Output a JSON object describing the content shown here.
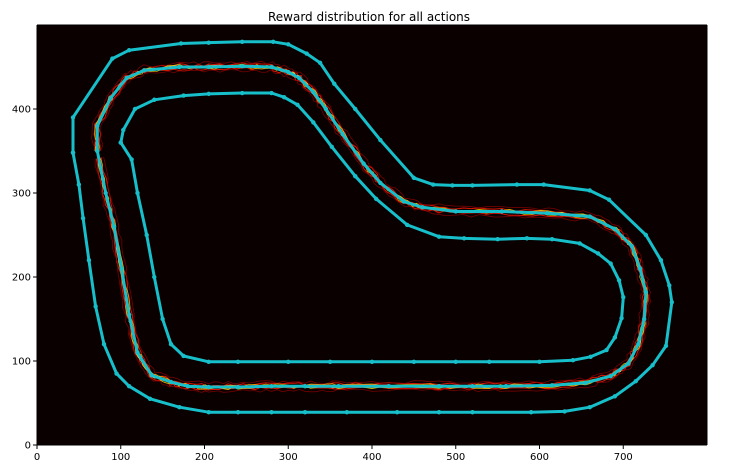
{
  "chart_data": {
    "type": "line",
    "title": "Reward distribution for all actions",
    "xlabel": "",
    "ylabel": "",
    "xlim": [
      0,
      800
    ],
    "ylim": [
      0,
      500
    ],
    "x_ticks": [
      0,
      100,
      200,
      300,
      400,
      500,
      600,
      700
    ],
    "y_ticks": [
      0,
      100,
      200,
      300,
      400
    ],
    "grid": false,
    "background_color": "#0a0000",
    "track_color": "#17bfca",
    "heat_colors": [
      "#8b0000",
      "#ff1a00",
      "#ffd700",
      "#ffffa0"
    ],
    "series": [
      {
        "role": "outer-border",
        "points": [
          [
            43,
            348
          ],
          [
            43,
            390
          ],
          [
            90,
            460
          ],
          [
            110,
            470
          ],
          [
            172,
            478
          ],
          [
            205,
            479
          ],
          [
            245,
            480
          ],
          [
            282,
            480
          ],
          [
            300,
            477
          ],
          [
            322,
            466
          ],
          [
            338,
            455
          ],
          [
            355,
            430
          ],
          [
            380,
            400
          ],
          [
            410,
            363
          ],
          [
            450,
            318
          ],
          [
            473,
            310
          ],
          [
            496,
            309
          ],
          [
            520,
            309
          ],
          [
            573,
            310
          ],
          [
            605,
            310
          ],
          [
            660,
            303
          ],
          [
            683,
            292
          ],
          [
            727,
            250
          ],
          [
            745,
            220
          ],
          [
            755,
            190
          ],
          [
            758,
            170
          ],
          [
            751,
            118
          ],
          [
            735,
            95
          ],
          [
            715,
            76
          ],
          [
            690,
            58
          ],
          [
            660,
            45
          ],
          [
            630,
            40
          ],
          [
            590,
            39
          ],
          [
            520,
            39
          ],
          [
            480,
            39
          ],
          [
            430,
            39
          ],
          [
            370,
            39
          ],
          [
            320,
            39
          ],
          [
            280,
            39
          ],
          [
            240,
            39
          ],
          [
            205,
            39
          ],
          [
            170,
            45
          ],
          [
            135,
            55
          ],
          [
            110,
            70
          ],
          [
            95,
            85
          ],
          [
            80,
            120
          ],
          [
            70,
            165
          ],
          [
            62,
            220
          ],
          [
            55,
            270
          ],
          [
            50,
            310
          ],
          [
            43,
            348
          ]
        ]
      },
      {
        "role": "centerline",
        "points": [
          [
            72,
            350
          ],
          [
            72,
            380
          ],
          [
            88,
            413
          ],
          [
            107,
            437
          ],
          [
            128,
            446
          ],
          [
            170,
            450
          ],
          [
            205,
            450
          ],
          [
            245,
            451
          ],
          [
            280,
            450
          ],
          [
            300,
            444
          ],
          [
            313,
            437
          ],
          [
            330,
            420
          ],
          [
            345,
            400
          ],
          [
            365,
            370
          ],
          [
            390,
            335
          ],
          [
            410,
            312
          ],
          [
            438,
            290
          ],
          [
            460,
            283
          ],
          [
            500,
            278
          ],
          [
            555,
            278
          ],
          [
            610,
            276
          ],
          [
            660,
            272
          ],
          [
            690,
            257
          ],
          [
            710,
            237
          ],
          [
            720,
            210
          ],
          [
            727,
            182
          ],
          [
            725,
            150
          ],
          [
            718,
            120
          ],
          [
            706,
            97
          ],
          [
            685,
            82
          ],
          [
            655,
            74
          ],
          [
            615,
            71
          ],
          [
            560,
            70
          ],
          [
            520,
            70
          ],
          [
            480,
            70
          ],
          [
            420,
            70
          ],
          [
            360,
            70
          ],
          [
            320,
            70
          ],
          [
            280,
            70
          ],
          [
            240,
            69
          ],
          [
            205,
            69
          ],
          [
            180,
            70
          ],
          [
            160,
            75
          ],
          [
            137,
            83
          ],
          [
            120,
            110
          ],
          [
            110,
            155
          ],
          [
            101,
            210
          ],
          [
            92,
            260
          ],
          [
            82,
            300
          ],
          [
            72,
            350
          ]
        ]
      },
      {
        "role": "inner-border",
        "points": [
          [
            100,
            360
          ],
          [
            103,
            375
          ],
          [
            117,
            400
          ],
          [
            140,
            411
          ],
          [
            175,
            416
          ],
          [
            205,
            418
          ],
          [
            245,
            419
          ],
          [
            280,
            419
          ],
          [
            295,
            414
          ],
          [
            311,
            405
          ],
          [
            330,
            384
          ],
          [
            352,
            355
          ],
          [
            380,
            320
          ],
          [
            405,
            293
          ],
          [
            442,
            262
          ],
          [
            480,
            248
          ],
          [
            510,
            246
          ],
          [
            550,
            245
          ],
          [
            585,
            246
          ],
          [
            615,
            245
          ],
          [
            648,
            240
          ],
          [
            670,
            228
          ],
          [
            685,
            216
          ],
          [
            695,
            196
          ],
          [
            700,
            176
          ],
          [
            698,
            151
          ],
          [
            690,
            128
          ],
          [
            680,
            113
          ],
          [
            661,
            105
          ],
          [
            640,
            101
          ],
          [
            600,
            99
          ],
          [
            540,
            99
          ],
          [
            500,
            99
          ],
          [
            450,
            99
          ],
          [
            400,
            99
          ],
          [
            350,
            99
          ],
          [
            300,
            99
          ],
          [
            240,
            99
          ],
          [
            205,
            99
          ],
          [
            175,
            106
          ],
          [
            160,
            120
          ],
          [
            150,
            150
          ],
          [
            140,
            200
          ],
          [
            131,
            250
          ],
          [
            120,
            300
          ],
          [
            113,
            340
          ],
          [
            100,
            360
          ]
        ]
      }
    ]
  }
}
